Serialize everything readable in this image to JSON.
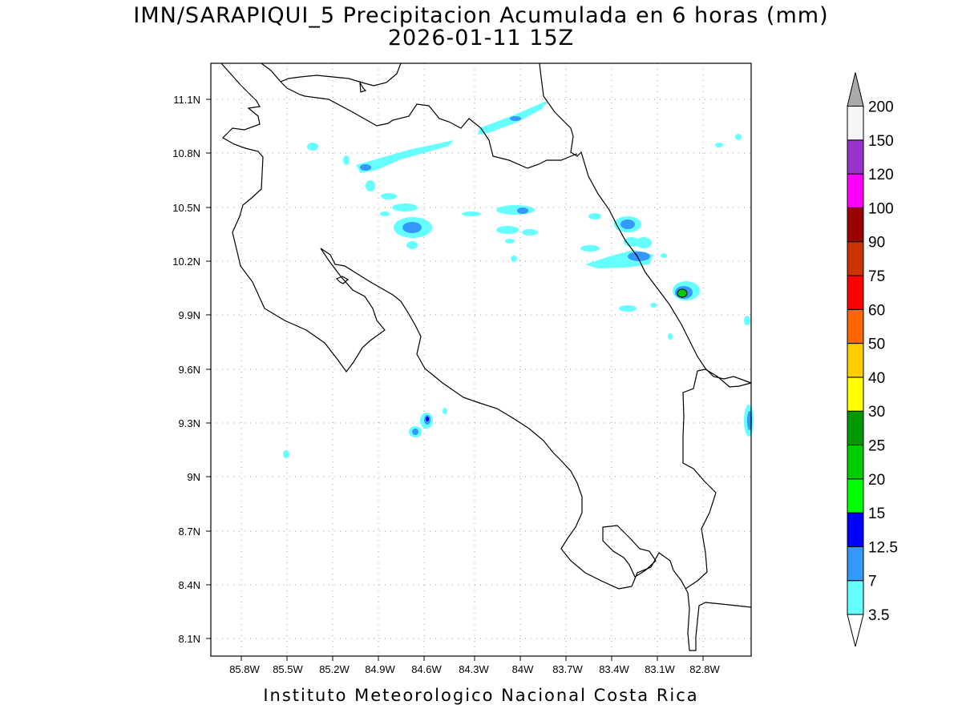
{
  "map": {
    "title_line1": "IMN/SARAPIQUI_5 Precipitacion Acumulada en 6 horas (mm)",
    "title_line2": "2026-01-11 15Z",
    "footer": "Instituto Meteorologico Nacional Costa Rica",
    "lon_labels": [
      "85.8W",
      "85.5W",
      "85.2W",
      "84.9W",
      "84.6W",
      "84.3W",
      "84W",
      "83.7W",
      "83.4W",
      "83.1W",
      "82.8W"
    ],
    "lat_labels": [
      "11.1N",
      "10.8N",
      "10.5N",
      "10.2N",
      "9.9N",
      "9.6N",
      "9.3N",
      "9N",
      "8.7N",
      "8.4N",
      "8.1N"
    ]
  },
  "colorbar": {
    "levels": [
      "3.5",
      "7",
      "12.5",
      "15",
      "20",
      "25",
      "30",
      "40",
      "50",
      "60",
      "75",
      "90",
      "100",
      "120",
      "150",
      "200"
    ],
    "colors": [
      "#66ffff",
      "#3399ff",
      "#0000ff",
      "#00ff00",
      "#00cc00",
      "#009900",
      "#ffff00",
      "#ffcc00",
      "#ff6600",
      "#ff0000",
      "#cc3300",
      "#990000",
      "#ff00ff",
      "#9933cc",
      "#f5f5f5",
      "#aaaaaa"
    ]
  }
}
